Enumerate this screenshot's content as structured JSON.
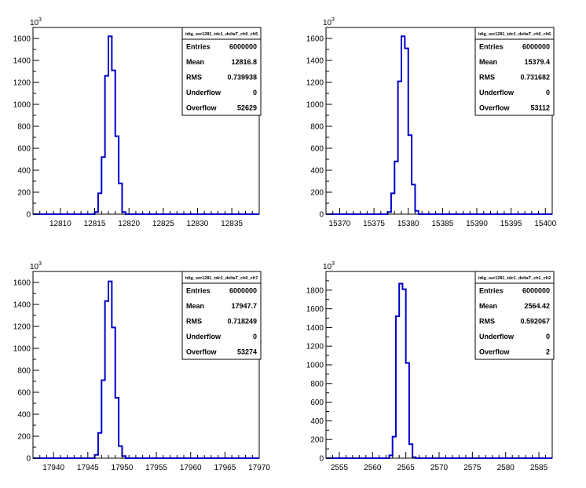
{
  "y_multiplier": "10",
  "y_multiplier_exp": "3",
  "stats_labels": [
    "Entries",
    "Mean",
    "RMS",
    "Underflow",
    "Overflow"
  ],
  "colors": {
    "hist": "#0000cc",
    "axis": "#000000",
    "bg": "#ffffff"
  },
  "chart_data": [
    {
      "type": "bar",
      "title": "tdig_ser1281_tdc1_deltaT_ch0_ch5",
      "xlim": [
        12806,
        12839
      ],
      "ylim": [
        0,
        1.7
      ],
      "x_ticks": [
        12810,
        12815,
        12820,
        12825,
        12830,
        12835
      ],
      "y_ticks": [
        0,
        0.2,
        0.4,
        0.6,
        0.8,
        1.0,
        1.2,
        1.4,
        1.6
      ],
      "y_tick_labels": [
        "0",
        "200",
        "400",
        "600",
        "800",
        "1000",
        "1200",
        "1400",
        "1600"
      ],
      "bin_width": 0.5,
      "bin_starts": [
        12815,
        12815.5,
        12816,
        12816.5,
        12817,
        12817.5,
        12818,
        12818.5,
        12819
      ],
      "values": [
        0.02,
        0.19,
        0.52,
        1.26,
        1.62,
        1.31,
        0.71,
        0.28,
        0.02
      ],
      "stats": [
        "6000000",
        "12816.8",
        "0.739938",
        "0",
        "52629"
      ]
    },
    {
      "type": "bar",
      "title": "tdig_ser1281_tdc1_deltaT_ch0_ch6",
      "xlim": [
        15368,
        15401
      ],
      "ylim": [
        0,
        1.7
      ],
      "x_ticks": [
        15370,
        15375,
        15380,
        15385,
        15390,
        15395,
        15400
      ],
      "y_ticks": [
        0,
        0.2,
        0.4,
        0.6,
        0.8,
        1.0,
        1.2,
        1.4,
        1.6
      ],
      "y_tick_labels": [
        "0",
        "200",
        "400",
        "600",
        "800",
        "1000",
        "1200",
        "1400",
        "1600"
      ],
      "bin_width": 0.5,
      "bin_starts": [
        15377,
        15377.5,
        15378,
        15378.5,
        15379,
        15379.5,
        15380,
        15380.5,
        15381
      ],
      "values": [
        0.02,
        0.19,
        0.48,
        1.21,
        1.62,
        1.51,
        0.72,
        0.27,
        0.03
      ],
      "stats": [
        "6000000",
        "15379.4",
        "0.731682",
        "0",
        "53112"
      ]
    },
    {
      "type": "bar",
      "title": "tdig_ser1281_tdc1_deltaT_ch0_ch7",
      "xlim": [
        17937,
        17970
      ],
      "ylim": [
        0,
        1.7
      ],
      "x_ticks": [
        17940,
        17945,
        17950,
        17955,
        17960,
        17965,
        17970
      ],
      "y_ticks": [
        0,
        0.2,
        0.4,
        0.6,
        0.8,
        1.0,
        1.2,
        1.4,
        1.6
      ],
      "y_tick_labels": [
        "0",
        "200",
        "400",
        "600",
        "800",
        "1000",
        "1200",
        "1400",
        "1600"
      ],
      "bin_width": 0.5,
      "bin_starts": [
        17946,
        17946.5,
        17947,
        17947.5,
        17948,
        17948.5,
        17949,
        17949.5,
        17950
      ],
      "values": [
        0.03,
        0.23,
        0.71,
        1.43,
        1.61,
        1.19,
        0.55,
        0.11,
        0.02
      ],
      "stats": [
        "6000000",
        "17947.7",
        "0.718249",
        "0",
        "53274"
      ]
    },
    {
      "type": "bar",
      "title": "tdig_ser1281_tdc1_deltaT_ch1_ch2",
      "xlim": [
        2553,
        2587
      ],
      "ylim": [
        0,
        2.0
      ],
      "x_ticks": [
        2555,
        2560,
        2565,
        2570,
        2575,
        2580,
        2585
      ],
      "y_ticks": [
        0,
        0.2,
        0.4,
        0.6,
        0.8,
        1.0,
        1.2,
        1.4,
        1.6,
        1.8
      ],
      "y_tick_labels": [
        "0",
        "200",
        "400",
        "600",
        "800",
        "1000",
        "1200",
        "1400",
        "1600",
        "1800"
      ],
      "bin_width": 0.5,
      "bin_starts": [
        2562.5,
        2563,
        2563.5,
        2564,
        2564.5,
        2565,
        2565.5,
        2566
      ],
      "values": [
        0.03,
        0.23,
        1.52,
        1.87,
        1.81,
        1.02,
        0.15,
        0.01
      ],
      "stats": [
        "6000000",
        "2564.42",
        "0.592067",
        "0",
        "2"
      ]
    }
  ]
}
